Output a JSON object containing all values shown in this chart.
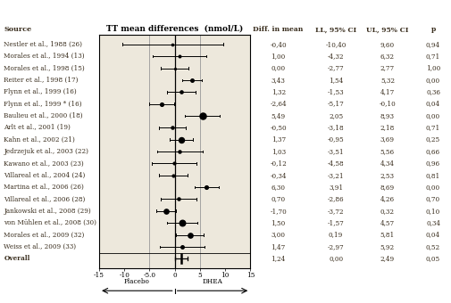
{
  "title": "TT mean differences  (nmol/L)",
  "xlabel_placebo": "Placebo",
  "xlabel_dhea": "DHEA",
  "col_header": [
    "Diff. in mean",
    "LL, 95% CI",
    "UL, 95% CI",
    "p"
  ],
  "sources": [
    "Nestler et al., 1988 (26)",
    "Morales et al., 1994 (13)",
    "Morales et al., 1998 (15)",
    "Reiter et al., 1998 (17)",
    "Flynn et al., 1999 (16)",
    "Flynn et al., 1999 * (16)",
    "Baulieu et al., 2000 (18)",
    "Arlt et al., 2001 (19)",
    "Kahn et al., 2002 (21)",
    "Jedrzejuk et al., 2003 (22)",
    "Kawano et al., 2003 (23)",
    "Villareal et al., 2004 (24)",
    "Martina et al., 2006 (26)",
    "Villareal et al., 2006 (28)",
    "Jankowski et al., 2008 (29)",
    "von Mühlen et al., 2008 (30)",
    "Morales et al., 2009 (32)",
    "Weiss et al., 2009 (33)",
    "Overall"
  ],
  "diff_mean": [
    -0.4,
    1.0,
    0.0,
    3.43,
    1.32,
    -2.64,
    5.49,
    -0.5,
    1.37,
    1.03,
    -0.12,
    -0.34,
    6.3,
    0.7,
    -1.7,
    1.5,
    3.0,
    1.47,
    1.24
  ],
  "ll_95": [
    -10.4,
    -4.32,
    -2.77,
    1.54,
    -1.53,
    -5.17,
    2.05,
    -3.18,
    -0.95,
    -3.51,
    -4.58,
    -3.21,
    3.91,
    -2.86,
    -3.72,
    -1.57,
    0.19,
    -2.97,
    0.0
  ],
  "ul_95": [
    9.6,
    6.32,
    2.77,
    5.32,
    4.17,
    -0.1,
    8.93,
    2.18,
    3.69,
    5.56,
    4.34,
    2.53,
    8.69,
    4.26,
    0.32,
    4.57,
    5.81,
    5.92,
    2.49
  ],
  "p_values": [
    0.94,
    0.71,
    1.0,
    0.0,
    0.36,
    0.04,
    0.0,
    0.71,
    0.25,
    0.66,
    0.96,
    0.81,
    0.0,
    0.7,
    0.1,
    0.34,
    0.04,
    0.52,
    0.05
  ],
  "marker_sizes": [
    18,
    25,
    12,
    45,
    38,
    50,
    180,
    35,
    130,
    35,
    28,
    28,
    50,
    35,
    100,
    155,
    100,
    45,
    0
  ],
  "axis_min": -15,
  "axis_max": 15,
  "axis_ticks": [
    -15,
    -10,
    -5.0,
    0,
    5,
    10,
    15
  ],
  "tick_labels": [
    "-15",
    "-10",
    "-5.0",
    "0",
    "5",
    "10",
    "15"
  ],
  "bg_color": "#ede8dc",
  "text_color": "#3a2e1e",
  "font_size_small": 5.2,
  "font_size_header": 5.8,
  "font_size_title": 6.5
}
